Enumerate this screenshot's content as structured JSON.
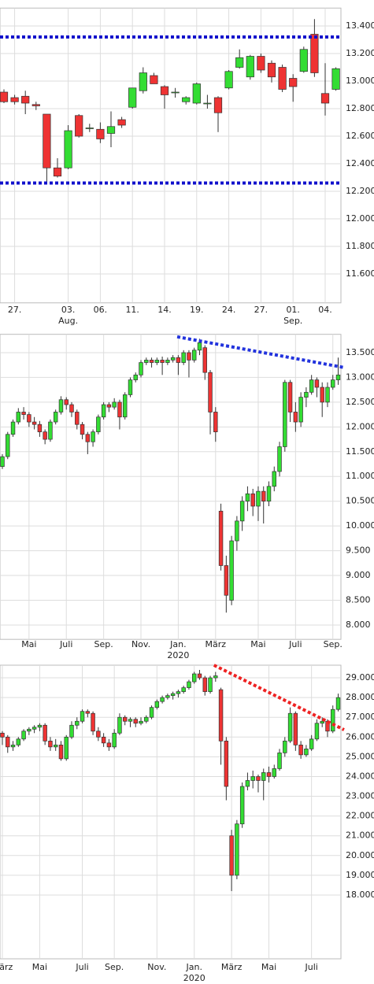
{
  "chart_data": [
    {
      "type": "candlestick",
      "up_color": "#33dd33",
      "down_color": "#ee3333",
      "grid": true,
      "ylim": [
        11.39,
        13.53
      ],
      "yticks": [
        {
          "value": 11.6,
          "label": "11.600"
        },
        {
          "value": 11.8,
          "label": "11.800"
        },
        {
          "value": 12.0,
          "label": "12.000"
        },
        {
          "value": 12.2,
          "label": "12.200"
        },
        {
          "value": 12.4,
          "label": "12.400"
        },
        {
          "value": 12.6,
          "label": "12.600"
        },
        {
          "value": 12.8,
          "label": "12.800"
        },
        {
          "value": 13.0,
          "label": "13.000"
        },
        {
          "value": 13.2,
          "label": "13.200"
        },
        {
          "value": 13.4,
          "label": "13.400"
        }
      ],
      "xticks": [
        {
          "value": 1,
          "label": "27."
        },
        {
          "value": 6,
          "label": "03."
        },
        {
          "value": 9,
          "label": "06."
        },
        {
          "value": 12,
          "label": "11."
        },
        {
          "value": 15,
          "label": "14."
        },
        {
          "value": 18,
          "label": "19."
        },
        {
          "value": 21,
          "label": "24."
        },
        {
          "value": 24,
          "label": "27."
        },
        {
          "value": 27,
          "label": "01."
        },
        {
          "value": 30,
          "label": "04."
        }
      ],
      "xsublabels": [
        {
          "value": 6,
          "label": "Aug."
        },
        {
          "value": 27,
          "label": "Sep."
        }
      ],
      "hlines": [
        {
          "value": 13.32,
          "color": "#1111cc"
        },
        {
          "value": 12.26,
          "color": "#1111cc"
        }
      ],
      "candles": [
        [
          12.92,
          12.94,
          12.84,
          12.85
        ],
        [
          12.88,
          12.9,
          12.83,
          12.85
        ],
        [
          12.89,
          12.93,
          12.76,
          12.84
        ],
        [
          12.83,
          12.85,
          12.79,
          12.82
        ],
        [
          12.76,
          12.76,
          12.27,
          12.37
        ],
        [
          12.37,
          12.44,
          12.3,
          12.31
        ],
        [
          12.37,
          12.68,
          12.36,
          12.64
        ],
        [
          12.75,
          12.76,
          12.59,
          12.6
        ],
        [
          12.66,
          12.69,
          12.63,
          12.66
        ],
        [
          12.65,
          12.7,
          12.55,
          12.58
        ],
        [
          12.62,
          12.78,
          12.52,
          12.67
        ],
        [
          12.72,
          12.74,
          12.66,
          12.68
        ],
        [
          12.81,
          12.95,
          12.8,
          12.95
        ],
        [
          12.93,
          13.1,
          12.91,
          13.06
        ],
        [
          13.04,
          13.06,
          12.98,
          12.98
        ],
        [
          12.96,
          12.97,
          12.8,
          12.9
        ],
        [
          12.92,
          12.95,
          12.88,
          12.92
        ],
        [
          12.85,
          12.89,
          12.83,
          12.88
        ],
        [
          12.84,
          12.99,
          12.83,
          12.98
        ],
        [
          12.84,
          12.9,
          12.8,
          12.84
        ],
        [
          12.88,
          12.89,
          12.63,
          12.77
        ],
        [
          12.95,
          13.08,
          12.94,
          13.07
        ],
        [
          13.1,
          13.23,
          13.09,
          13.17
        ],
        [
          13.03,
          13.19,
          13.01,
          13.18
        ],
        [
          13.18,
          13.2,
          13.06,
          13.08
        ],
        [
          13.13,
          13.15,
          12.99,
          13.03
        ],
        [
          13.1,
          13.12,
          12.92,
          12.94
        ],
        [
          13.02,
          13.05,
          12.85,
          12.96
        ],
        [
          13.07,
          13.25,
          13.06,
          13.23
        ],
        [
          13.34,
          13.45,
          13.03,
          13.06
        ],
        [
          12.91,
          13.13,
          12.75,
          12.84
        ],
        [
          12.94,
          13.1,
          12.93,
          13.09
        ]
      ]
    },
    {
      "type": "candlestick",
      "up_color": "#33dd33",
      "down_color": "#ee3333",
      "grid": true,
      "ylim": [
        7.71,
        13.87
      ],
      "yticks": [
        {
          "value": 8.0,
          "label": "8.000"
        },
        {
          "value": 8.5,
          "label": "8.500"
        },
        {
          "value": 9.0,
          "label": "9.000"
        },
        {
          "value": 9.5,
          "label": "9.500"
        },
        {
          "value": 10.0,
          "label": "10.000"
        },
        {
          "value": 10.5,
          "label": "10.500"
        },
        {
          "value": 11.0,
          "label": "11.000"
        },
        {
          "value": 11.5,
          "label": "11.500"
        },
        {
          "value": 12.0,
          "label": "12.000"
        },
        {
          "value": 12.5,
          "label": "12.500"
        },
        {
          "value": 13.0,
          "label": "13.000"
        },
        {
          "value": 13.5,
          "label": "13.500"
        }
      ],
      "xticks": [
        {
          "value": 5,
          "label": "Mai"
        },
        {
          "value": 12,
          "label": "Juli"
        },
        {
          "value": 19,
          "label": "Sep."
        },
        {
          "value": 26,
          "label": "Nov."
        },
        {
          "value": 33,
          "label": "Jan."
        },
        {
          "value": 40,
          "label": "März"
        },
        {
          "value": 48,
          "label": "Mai"
        },
        {
          "value": 55,
          "label": "Juli"
        },
        {
          "value": 62,
          "label": "Sep."
        }
      ],
      "xsublabels": [
        {
          "value": 33,
          "label": "2020"
        }
      ],
      "trendline": {
        "x": [
          32.8,
          64.1
        ],
        "y": [
          13.82,
          13.2
        ],
        "color": "#2233dd"
      },
      "candles": [
        [
          11.2,
          11.45,
          11.15,
          11.4
        ],
        [
          11.4,
          11.9,
          11.35,
          11.85
        ],
        [
          11.85,
          12.15,
          11.8,
          12.1
        ],
        [
          12.1,
          12.38,
          12.05,
          12.3
        ],
        [
          12.3,
          12.4,
          12.15,
          12.25
        ],
        [
          12.25,
          12.3,
          12.0,
          12.1
        ],
        [
          12.1,
          12.2,
          11.95,
          12.05
        ],
        [
          12.05,
          12.12,
          11.8,
          11.9
        ],
        [
          11.9,
          11.95,
          11.65,
          11.75
        ],
        [
          11.75,
          12.15,
          11.7,
          12.1
        ],
        [
          12.1,
          12.35,
          12.05,
          12.3
        ],
        [
          12.3,
          12.62,
          12.25,
          12.55
        ],
        [
          12.55,
          12.6,
          12.35,
          12.45
        ],
        [
          12.45,
          12.5,
          12.2,
          12.3
        ],
        [
          12.3,
          12.35,
          11.95,
          12.05
        ],
        [
          12.05,
          12.1,
          11.75,
          11.85
        ],
        [
          11.85,
          11.9,
          11.45,
          11.7
        ],
        [
          11.7,
          11.95,
          11.6,
          11.9
        ],
        [
          11.9,
          12.25,
          11.85,
          12.2
        ],
        [
          12.2,
          12.5,
          12.15,
          12.45
        ],
        [
          12.45,
          12.5,
          12.3,
          12.4
        ],
        [
          12.4,
          12.58,
          12.35,
          12.5
        ],
        [
          12.5,
          12.55,
          11.95,
          12.2
        ],
        [
          12.2,
          12.7,
          12.15,
          12.65
        ],
        [
          12.65,
          13.0,
          12.6,
          12.95
        ],
        [
          12.95,
          13.1,
          12.9,
          13.05
        ],
        [
          13.05,
          13.35,
          13.0,
          13.3
        ],
        [
          13.3,
          13.4,
          13.25,
          13.35
        ],
        [
          13.35,
          13.4,
          13.2,
          13.3
        ],
        [
          13.3,
          13.4,
          13.25,
          13.35
        ],
        [
          13.35,
          13.42,
          13.05,
          13.3
        ],
        [
          13.3,
          13.4,
          13.25,
          13.35
        ],
        [
          13.35,
          13.45,
          13.3,
          13.4
        ],
        [
          13.4,
          13.45,
          13.05,
          13.3
        ],
        [
          13.3,
          13.55,
          13.25,
          13.5
        ],
        [
          13.5,
          13.55,
          13.0,
          13.35
        ],
        [
          13.35,
          13.6,
          13.3,
          13.55
        ],
        [
          13.55,
          13.78,
          13.45,
          13.7
        ],
        [
          13.6,
          13.65,
          12.95,
          13.1
        ],
        [
          13.1,
          13.15,
          11.85,
          12.3
        ],
        [
          12.3,
          12.4,
          11.7,
          11.9
        ],
        [
          10.3,
          10.45,
          9.1,
          9.2
        ],
        [
          9.2,
          9.4,
          8.25,
          8.6
        ],
        [
          8.5,
          9.8,
          8.4,
          9.7
        ],
        [
          9.7,
          10.2,
          9.5,
          10.1
        ],
        [
          10.1,
          10.6,
          9.9,
          10.5
        ],
        [
          10.5,
          10.8,
          10.3,
          10.65
        ],
        [
          10.65,
          10.75,
          10.2,
          10.4
        ],
        [
          10.4,
          10.8,
          10.1,
          10.7
        ],
        [
          10.7,
          10.8,
          10.05,
          10.5
        ],
        [
          10.5,
          10.9,
          10.4,
          10.8
        ],
        [
          10.8,
          11.2,
          10.7,
          11.1
        ],
        [
          11.1,
          11.7,
          11.0,
          11.6
        ],
        [
          11.6,
          12.95,
          11.5,
          12.9
        ],
        [
          12.9,
          12.95,
          12.1,
          12.3
        ],
        [
          12.3,
          12.5,
          11.9,
          12.1
        ],
        [
          12.1,
          12.7,
          12.0,
          12.6
        ],
        [
          12.6,
          12.8,
          12.4,
          12.7
        ],
        [
          12.7,
          13.05,
          12.65,
          12.95
        ],
        [
          12.95,
          13.0,
          12.6,
          12.8
        ],
        [
          12.8,
          12.9,
          12.2,
          12.5
        ],
        [
          12.5,
          12.9,
          12.4,
          12.8
        ],
        [
          12.8,
          13.05,
          12.75,
          12.95
        ],
        [
          12.95,
          13.4,
          12.85,
          13.05
        ]
      ]
    },
    {
      "type": "candlestick",
      "up_color": "#33dd33",
      "down_color": "#ee3333",
      "grid": true,
      "ylim": [
        14.77,
        29.64
      ],
      "yticks": [
        {
          "value": 18,
          "label": "18.000"
        },
        {
          "value": 19,
          "label": "19.000"
        },
        {
          "value": 20,
          "label": "20.000"
        },
        {
          "value": 21,
          "label": "21.000"
        },
        {
          "value": 22,
          "label": "22.000"
        },
        {
          "value": 23,
          "label": "23.000"
        },
        {
          "value": 24,
          "label": "24.000"
        },
        {
          "value": 25,
          "label": "25.000"
        },
        {
          "value": 26,
          "label": "26.000"
        },
        {
          "value": 27,
          "label": "27.000"
        },
        {
          "value": 28,
          "label": "28.000"
        },
        {
          "value": 29,
          "label": "29.000"
        }
      ],
      "xticks": [
        {
          "value": 0,
          "label": "März"
        },
        {
          "value": 7,
          "label": "Mai"
        },
        {
          "value": 15,
          "label": "Juli"
        },
        {
          "value": 21,
          "label": "Sep."
        },
        {
          "value": 29,
          "label": "Nov."
        },
        {
          "value": 36,
          "label": "Jan."
        },
        {
          "value": 43,
          "label": "März"
        },
        {
          "value": 50,
          "label": "Mai"
        },
        {
          "value": 58,
          "label": "Juli"
        }
      ],
      "xsublabels": [
        {
          "value": 36,
          "label": "2020"
        }
      ],
      "trendline": {
        "x": [
          39.7,
          64.1
        ],
        "y": [
          29.64,
          26.37
        ],
        "color": "#ee2222"
      },
      "candles": [
        [
          26.2,
          26.3,
          25.6,
          26.0
        ],
        [
          26.0,
          26.1,
          25.2,
          25.5
        ],
        [
          25.5,
          25.8,
          25.3,
          25.6
        ],
        [
          25.6,
          26.0,
          25.5,
          25.9
        ],
        [
          25.9,
          26.4,
          25.8,
          26.3
        ],
        [
          26.3,
          26.5,
          26.1,
          26.4
        ],
        [
          26.4,
          26.6,
          26.2,
          26.5
        ],
        [
          26.5,
          26.7,
          26.3,
          26.6
        ],
        [
          26.6,
          26.7,
          25.6,
          25.8
        ],
        [
          25.8,
          26.0,
          25.3,
          25.5
        ],
        [
          25.5,
          25.9,
          25.3,
          25.6
        ],
        [
          25.6,
          25.8,
          24.8,
          24.9
        ],
        [
          24.9,
          26.1,
          24.8,
          26.0
        ],
        [
          26.0,
          26.8,
          25.9,
          26.6
        ],
        [
          26.6,
          27.0,
          26.4,
          26.8
        ],
        [
          26.8,
          27.4,
          26.7,
          27.3
        ],
        [
          27.3,
          27.4,
          27.0,
          27.2
        ],
        [
          27.2,
          27.3,
          26.1,
          26.3
        ],
        [
          26.3,
          26.5,
          25.8,
          26.0
        ],
        [
          26.0,
          26.2,
          25.5,
          25.7
        ],
        [
          25.7,
          25.9,
          25.3,
          25.5
        ],
        [
          25.5,
          26.4,
          25.4,
          26.2
        ],
        [
          26.2,
          27.2,
          26.1,
          27.0
        ],
        [
          27.0,
          27.1,
          26.6,
          26.8
        ],
        [
          26.8,
          27.0,
          26.5,
          26.9
        ],
        [
          26.9,
          27.0,
          26.5,
          26.7
        ],
        [
          26.7,
          27.0,
          26.6,
          26.8
        ],
        [
          26.8,
          27.1,
          26.7,
          27.0
        ],
        [
          27.0,
          27.6,
          26.9,
          27.5
        ],
        [
          27.5,
          27.9,
          27.4,
          27.8
        ],
        [
          27.8,
          28.1,
          27.7,
          28.0
        ],
        [
          28.0,
          28.2,
          27.9,
          28.1
        ],
        [
          28.1,
          28.3,
          27.9,
          28.2
        ],
        [
          28.2,
          28.4,
          28.0,
          28.3
        ],
        [
          28.3,
          28.6,
          28.2,
          28.5
        ],
        [
          28.5,
          28.9,
          28.4,
          28.8
        ],
        [
          28.8,
          29.3,
          28.7,
          29.2
        ],
        [
          29.2,
          29.4,
          28.9,
          29.0
        ],
        [
          29.0,
          29.1,
          28.1,
          28.3
        ],
        [
          28.3,
          29.1,
          28.2,
          29.0
        ],
        [
          29.0,
          29.3,
          28.8,
          29.1
        ],
        [
          28.4,
          28.5,
          24.6,
          25.8
        ],
        [
          25.8,
          26.0,
          22.8,
          23.5
        ],
        [
          21.0,
          21.3,
          18.2,
          19.0
        ],
        [
          19.0,
          21.8,
          18.8,
          21.6
        ],
        [
          21.6,
          23.7,
          21.4,
          23.5
        ],
        [
          23.5,
          24.2,
          23.3,
          23.8
        ],
        [
          23.8,
          24.3,
          23.4,
          24.0
        ],
        [
          24.0,
          24.1,
          23.2,
          23.8
        ],
        [
          23.8,
          24.4,
          22.8,
          24.2
        ],
        [
          24.2,
          24.5,
          23.7,
          24.0
        ],
        [
          24.0,
          24.6,
          23.9,
          24.4
        ],
        [
          24.4,
          25.4,
          24.3,
          25.2
        ],
        [
          25.2,
          26.0,
          25.0,
          25.8
        ],
        [
          25.8,
          27.5,
          25.7,
          27.2
        ],
        [
          27.2,
          27.3,
          25.3,
          25.6
        ],
        [
          25.6,
          25.8,
          24.9,
          25.1
        ],
        [
          25.1,
          25.6,
          25.0,
          25.4
        ],
        [
          25.4,
          26.1,
          25.3,
          25.9
        ],
        [
          25.9,
          26.9,
          25.8,
          26.7
        ],
        [
          26.7,
          27.0,
          26.5,
          26.8
        ],
        [
          26.8,
          26.9,
          26.0,
          26.3
        ],
        [
          26.3,
          27.6,
          26.2,
          27.4
        ],
        [
          27.4,
          28.2,
          27.3,
          28.0
        ]
      ]
    }
  ]
}
